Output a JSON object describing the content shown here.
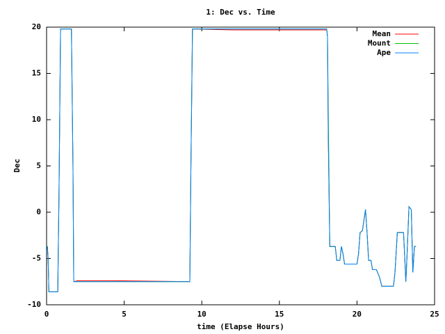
{
  "chart_data": {
    "type": "line",
    "title": "1: Dec vs. Time",
    "x_label": "time (Elapse Hours)",
    "y_label": "Dec",
    "x": [
      0,
      0.05,
      0.1,
      0.15,
      0.72,
      0.8,
      0.9,
      1.6,
      1.7,
      1.75,
      2.0,
      4.3,
      9.23,
      9.3,
      9.4,
      12.0,
      18.05,
      18.1,
      18.15,
      18.25,
      18.6,
      18.7,
      18.9,
      19.0,
      19.1,
      19.2,
      20.0,
      20.1,
      20.2,
      20.35,
      20.55,
      20.65,
      20.75,
      20.9,
      21.0,
      21.25,
      21.45,
      21.6,
      22.35,
      22.45,
      22.6,
      23.0,
      23.15,
      23.25,
      23.35,
      23.5,
      23.6,
      23.7,
      23.8
    ],
    "series": [
      {
        "name": "Mean",
        "color": "#ff0000",
        "values": [
          -3.7,
          -3.7,
          -5,
          -8.6,
          -8.6,
          2,
          19.8,
          19.8,
          5,
          -7.5,
          -7.4,
          -7.4,
          -7.5,
          5,
          19.8,
          19.7,
          19.7,
          19,
          8,
          -3.7,
          -3.7,
          -5.2,
          -5.2,
          -3.7,
          -4.5,
          -5.6,
          -5.6,
          -4.5,
          -2.2,
          -2,
          0.3,
          -2.2,
          -5.2,
          -5.2,
          -6.2,
          -6.2,
          -7,
          -8,
          -8,
          -6.5,
          -2.2,
          -2.2,
          -7.5,
          -3.7,
          0.6,
          0.3,
          -6.5,
          -3.7,
          -3.7
        ]
      },
      {
        "name": "Mount",
        "color": "#00c000",
        "values": [
          -3.7,
          -3.7,
          -5,
          -8.6,
          -8.6,
          2,
          19.8,
          19.8,
          5,
          -7.5,
          -7.5,
          -7.5,
          -7.5,
          5,
          19.8,
          19.8,
          19.8,
          19,
          11,
          -3.7,
          -3.7,
          -5.2,
          -5.2,
          -3.7,
          -4.5,
          -5.6,
          -5.6,
          -4.5,
          -2.2,
          -2,
          0.3,
          -2.2,
          -5.2,
          -5.2,
          -6.2,
          -6.2,
          -7,
          -8,
          -8,
          -6.5,
          -2.2,
          -2.2,
          -7.5,
          -3.7,
          0.6,
          0.3,
          -6.5,
          -3.7,
          -3.7
        ]
      },
      {
        "name": "Ape",
        "color": "#0080ff",
        "values": [
          -3.7,
          -3.7,
          -5,
          -8.6,
          -8.6,
          2,
          19.8,
          19.8,
          5,
          -7.5,
          -7.5,
          -7.5,
          -7.5,
          5,
          19.8,
          19.8,
          19.8,
          19,
          8,
          -3.7,
          -3.7,
          -5.2,
          -5.2,
          -3.7,
          -4.5,
          -5.6,
          -5.6,
          -4.5,
          -2.2,
          -2,
          0.3,
          -2.2,
          -5.2,
          -5.2,
          -6.2,
          -6.2,
          -7,
          -8,
          -8,
          -6.5,
          -2.2,
          -2.2,
          -7.5,
          -3.7,
          0.6,
          0.3,
          -6.5,
          -3.7,
          -3.7
        ]
      }
    ],
    "xlim": [
      0,
      25
    ],
    "xticks": [
      0,
      5,
      10,
      15,
      20,
      25
    ],
    "ylim": [
      -10,
      20
    ],
    "yticks": [
      -10,
      -5,
      0,
      5,
      10,
      15,
      20
    ],
    "legend": "top-right",
    "grid": false
  }
}
